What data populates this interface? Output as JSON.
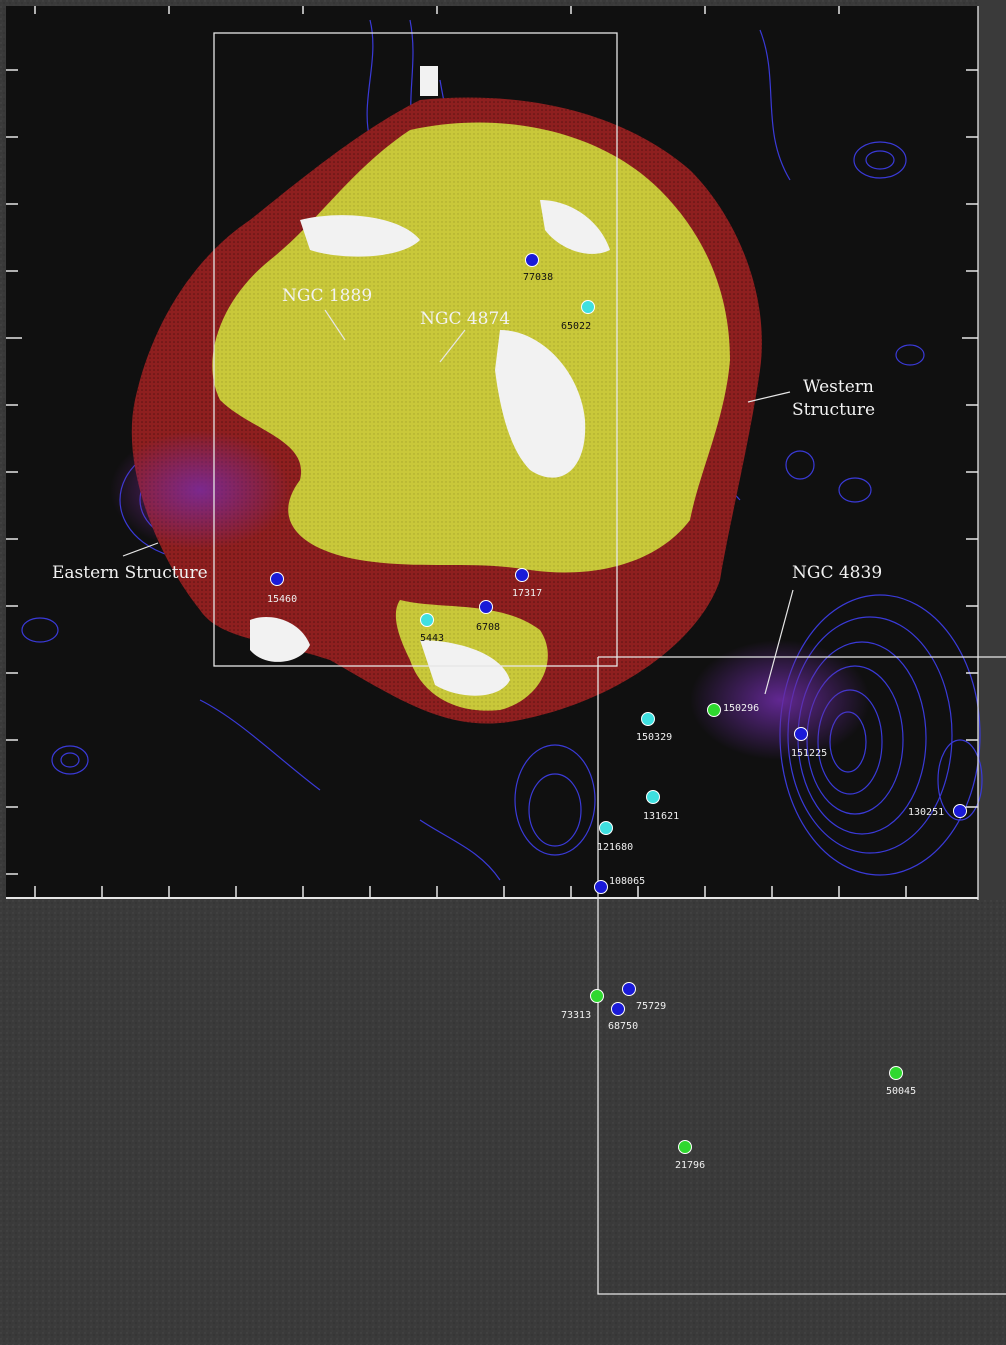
{
  "colors": {
    "background_upper": "#101010",
    "background_lower": "#3a3a3a",
    "map_frame": "#e6e6e6",
    "xray_high": "#f2f2f2",
    "xray_mid": "#c9c83a",
    "xray_low": "#8e1f1f",
    "radio_contours": "#3a3ad8",
    "galaxy_blue": "#1a1ad8",
    "galaxy_cyan": "#3fe0e0",
    "galaxy_green": "#2fd82f"
  },
  "labels": {
    "ngc1889": "NGC 1889",
    "ngc4874": "NGC 4874",
    "western_structure_line1": "Western",
    "western_structure_line2": "Structure",
    "eastern_structure": "Eastern Structure",
    "ngc4839": "NGC 4839"
  },
  "galaxies": [
    {
      "id": "77038",
      "color": "blue"
    },
    {
      "id": "65022",
      "color": "cyan"
    },
    {
      "id": "15460",
      "color": "blue"
    },
    {
      "id": "17317",
      "color": "blue"
    },
    {
      "id": "5443",
      "color": "cyan"
    },
    {
      "id": "6708",
      "color": "blue"
    },
    {
      "id": "150296",
      "color": "green"
    },
    {
      "id": "150329",
      "color": "cyan"
    },
    {
      "id": "151225",
      "color": "blue"
    },
    {
      "id": "131621",
      "color": "cyan"
    },
    {
      "id": "121680",
      "color": "cyan"
    },
    {
      "id": "130251",
      "color": "blue"
    },
    {
      "id": "108065",
      "color": "blue"
    },
    {
      "id": "73313",
      "color": "green"
    },
    {
      "id": "75729",
      "color": "blue"
    },
    {
      "id": "68750",
      "color": "blue"
    },
    {
      "id": "50045",
      "color": "green"
    },
    {
      "id": "21796",
      "color": "green"
    }
  ]
}
